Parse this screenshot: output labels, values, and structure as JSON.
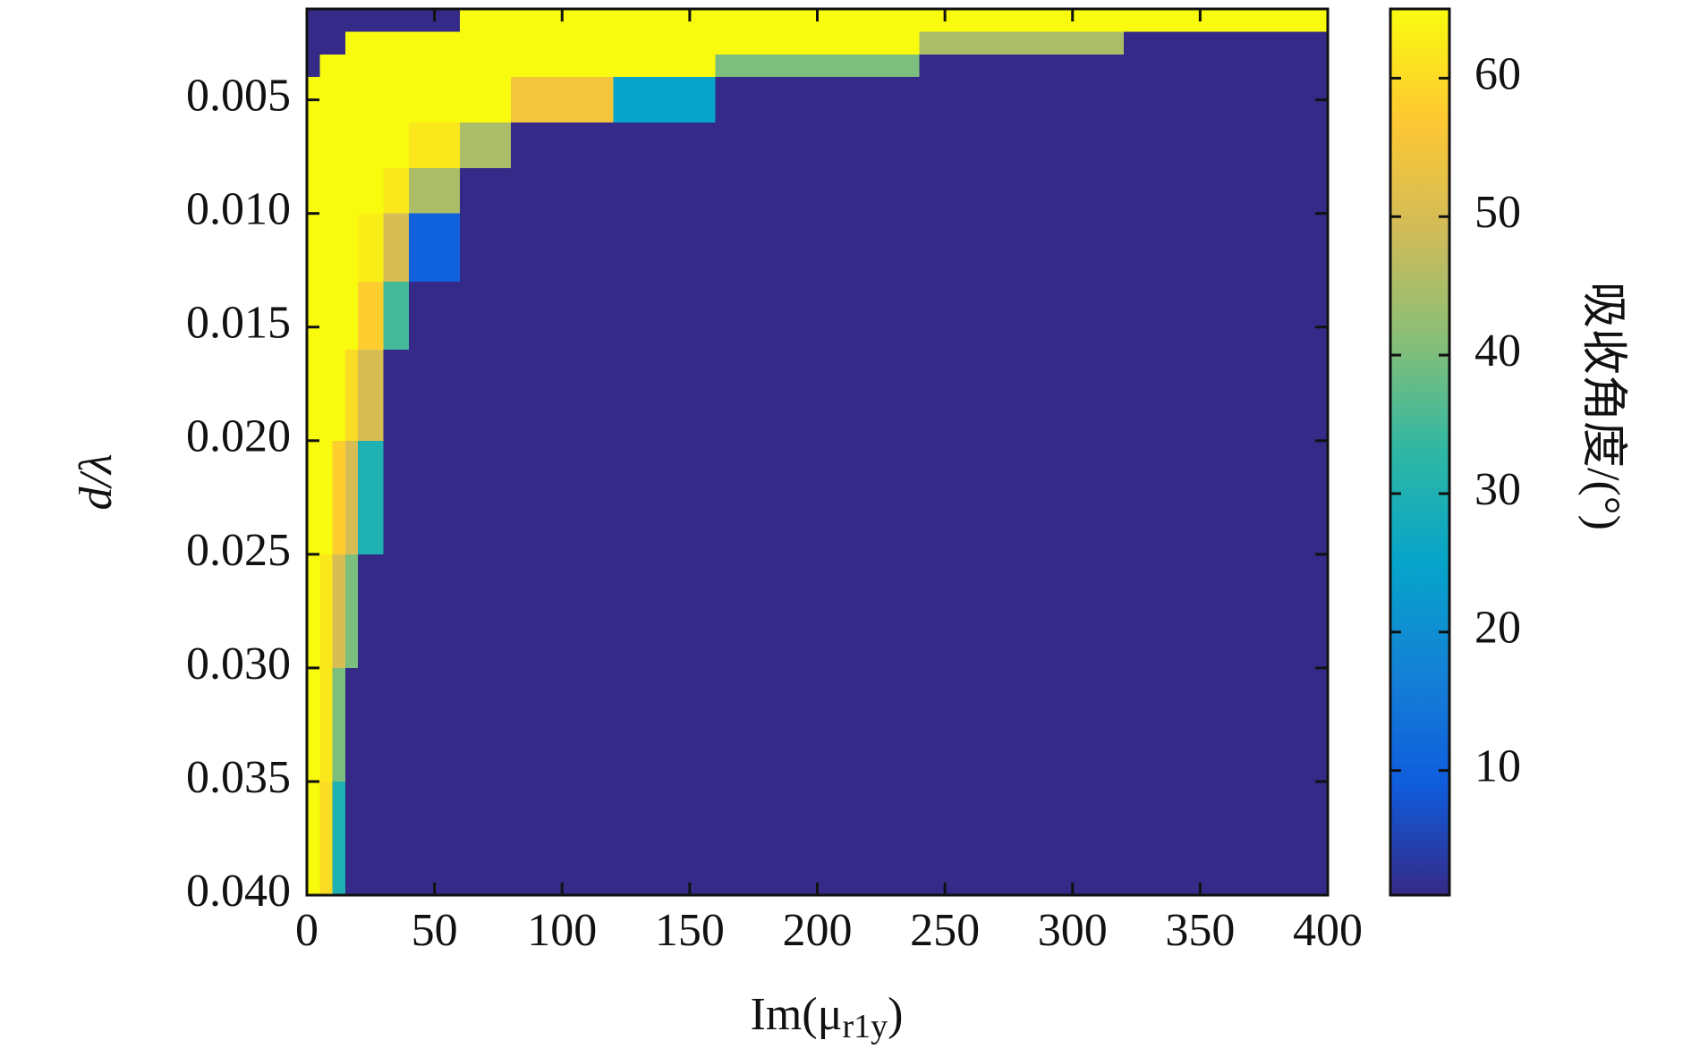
{
  "chart_data": {
    "type": "heatmap",
    "xlabel": {
      "base": "Im(μ",
      "subscript": "r1y",
      "close": ")"
    },
    "ylabel": "d/λ",
    "colorbar_label": "吸收角度/(°)",
    "xlim": [
      0,
      400
    ],
    "xticks": [
      0,
      50,
      100,
      150,
      200,
      250,
      300,
      350,
      400
    ],
    "ylim": [
      0.001,
      0.04
    ],
    "yreverse": true,
    "yticks": [
      0.005,
      {
        "value": 0.01,
        "label": "0.010"
      },
      0.015,
      {
        "value": 0.02,
        "label": "0.020"
      },
      0.025,
      {
        "value": 0.03,
        "label": "0.030"
      },
      0.035,
      {
        "value": 0.04,
        "label": "0.040"
      }
    ],
    "x_bins": [
      0,
      5,
      10,
      15,
      20,
      30,
      40,
      60,
      80,
      120,
      160,
      240,
      320,
      400
    ],
    "y_bins": [
      0.001,
      0.002,
      0.003,
      0.004,
      0.006,
      0.008,
      0.01,
      0.013,
      0.016,
      0.02,
      0.025,
      0.03,
      0.035,
      0.04
    ],
    "z": [
      [
        1,
        1,
        1,
        1,
        1,
        1,
        1,
        65,
        65,
        65,
        65,
        65,
        65
      ],
      [
        1,
        1,
        1,
        65,
        65,
        65,
        65,
        65,
        65,
        65,
        65,
        45,
        1
      ],
      [
        1,
        65,
        65,
        65,
        65,
        65,
        65,
        65,
        65,
        65,
        40,
        1,
        1
      ],
      [
        65,
        65,
        65,
        65,
        65,
        65,
        65,
        65,
        55,
        25,
        1,
        1,
        1
      ],
      [
        65,
        65,
        65,
        65,
        65,
        65,
        62,
        45,
        1,
        1,
        1,
        1,
        1
      ],
      [
        65,
        65,
        65,
        65,
        65,
        62,
        45,
        1,
        1,
        1,
        1,
        1,
        1
      ],
      [
        65,
        65,
        65,
        65,
        63,
        50,
        10,
        1,
        1,
        1,
        1,
        1,
        1
      ],
      [
        65,
        65,
        65,
        65,
        58,
        35,
        1,
        1,
        1,
        1,
        1,
        1,
        1
      ],
      [
        65,
        65,
        65,
        60,
        50,
        1,
        1,
        1,
        1,
        1,
        1,
        1,
        1
      ],
      [
        65,
        65,
        58,
        50,
        30,
        1,
        1,
        1,
        1,
        1,
        1,
        1,
        1
      ],
      [
        65,
        62,
        50,
        40,
        1,
        1,
        1,
        1,
        1,
        1,
        1,
        1,
        1
      ],
      [
        65,
        62,
        40,
        1,
        1,
        1,
        1,
        1,
        1,
        1,
        1,
        1,
        1
      ],
      [
        65,
        60,
        30,
        1,
        1,
        1,
        1,
        1,
        1,
        1,
        1,
        1,
        1
      ]
    ],
    "clim": [
      1,
      65
    ],
    "cticks": [
      10,
      20,
      30,
      40,
      50,
      60
    ],
    "colormap": [
      "#352a87",
      "#0f5cdd",
      "#1481d6",
      "#06a4ca",
      "#2eb7a4",
      "#87bf77",
      "#d1bb59",
      "#fec832",
      "#f9fb0e"
    ]
  }
}
